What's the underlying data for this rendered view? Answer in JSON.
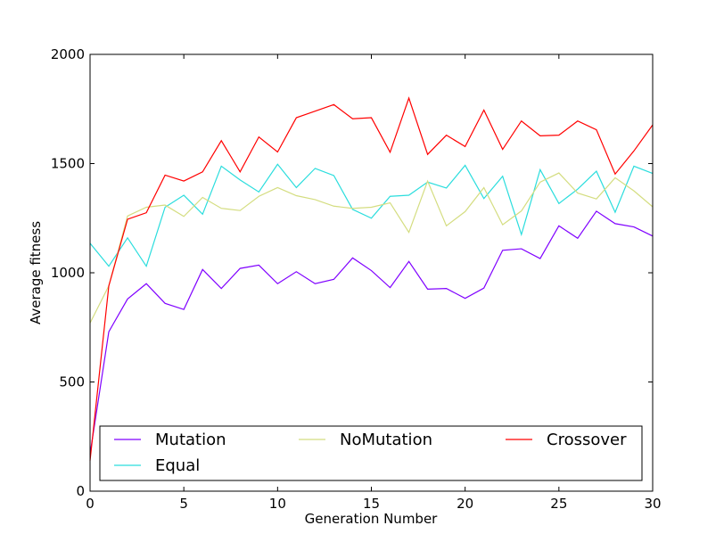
{
  "chart_data": {
    "type": "line",
    "title": "",
    "xlabel": "Generation Number",
    "ylabel": "Average fitness",
    "xlim": [
      0,
      30
    ],
    "ylim": [
      0,
      2000
    ],
    "xticks": [
      "0",
      "5",
      "10",
      "15",
      "20",
      "25",
      "30"
    ],
    "yticks": [
      "0",
      "500",
      "1000",
      "1500",
      "2000"
    ],
    "grid": false,
    "legend_position": "lower-center",
    "x": [
      0,
      1,
      2,
      3,
      4,
      5,
      6,
      7,
      8,
      9,
      10,
      11,
      12,
      13,
      14,
      15,
      16,
      17,
      18,
      19,
      20,
      21,
      22,
      23,
      24,
      25,
      26,
      27,
      28,
      29,
      30
    ],
    "series": [
      {
        "name": "Mutation",
        "color": "#7f00ff",
        "values": [
          170,
          730,
          880,
          950,
          860,
          832,
          1015,
          928,
          1020,
          1035,
          950,
          1005,
          950,
          970,
          1068,
          1010,
          932,
          1052,
          925,
          928,
          883,
          930,
          1103,
          1110,
          1065,
          1215,
          1158,
          1282,
          1225,
          1210,
          1168
        ]
      },
      {
        "name": "Equal",
        "color": "#2adddd",
        "values": [
          1135,
          1030,
          1160,
          1030,
          1300,
          1355,
          1268,
          1488,
          1425,
          1370,
          1497,
          1390,
          1478,
          1445,
          1290,
          1250,
          1350,
          1355,
          1415,
          1388,
          1492,
          1340,
          1442,
          1175,
          1472,
          1317,
          1383,
          1465,
          1277,
          1488,
          1455
        ]
      },
      {
        "name": "NoMutation",
        "color": "#d4dd80",
        "values": [
          770,
          940,
          1260,
          1300,
          1310,
          1258,
          1345,
          1295,
          1285,
          1350,
          1390,
          1353,
          1335,
          1305,
          1295,
          1300,
          1320,
          1185,
          1420,
          1215,
          1280,
          1390,
          1220,
          1283,
          1415,
          1457,
          1365,
          1338,
          1435,
          1375,
          1302
        ]
      },
      {
        "name": "Crossover",
        "color": "#ff0000",
        "values": [
          140,
          940,
          1245,
          1275,
          1447,
          1420,
          1462,
          1605,
          1462,
          1622,
          1553,
          1710,
          1740,
          1770,
          1705,
          1710,
          1552,
          1800,
          1542,
          1630,
          1578,
          1745,
          1565,
          1695,
          1627,
          1630,
          1695,
          1655,
          1452,
          1558,
          1677
        ]
      }
    ]
  }
}
